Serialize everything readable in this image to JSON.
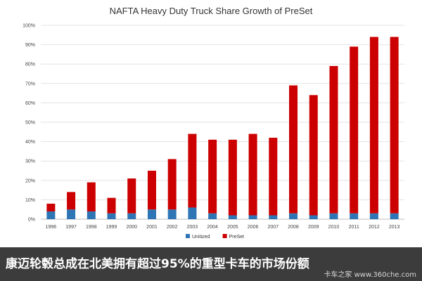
{
  "chart_data": {
    "type": "bar",
    "stacked": true,
    "title": "NAFTA Heavy Duty Truck Share Growth of PreSet",
    "categories": [
      "1996",
      "1997",
      "1998",
      "1999",
      "2000",
      "2001",
      "2002",
      "2003",
      "2004",
      "2005",
      "2006",
      "2007",
      "2008",
      "2009",
      "2010",
      "2011",
      "2012",
      "2013"
    ],
    "series": [
      {
        "name": "Unitized",
        "color": "#2e75b6",
        "values": [
          4,
          5,
          4,
          3,
          3,
          5,
          5,
          6,
          3,
          2,
          2,
          2,
          3,
          2,
          3,
          3,
          3,
          3
        ]
      },
      {
        "name": "PreSet",
        "color": "#cc0000",
        "values": [
          4,
          9,
          15,
          8,
          18,
          20,
          26,
          38,
          38,
          39,
          42,
          40,
          66,
          62,
          76,
          86,
          91,
          91
        ]
      }
    ],
    "totals": [
      8,
      14,
      19,
      11,
      21,
      25,
      31,
      44,
      41,
      41,
      44,
      42,
      69,
      64,
      79,
      89,
      94,
      94
    ],
    "yticks": [
      "0%",
      "10%",
      "20%",
      "30%",
      "40%",
      "50%",
      "60%",
      "70%",
      "80%",
      "90%",
      "100%"
    ],
    "ylim": [
      0,
      100
    ],
    "xlabel": "",
    "ylabel": "",
    "grid": true,
    "legend": "bottom-center"
  },
  "banner": {
    "caption": "康迈轮毂总成在北美拥有超过95%的重型卡车的市场份额",
    "watermark": "卡车之家 www.360che.com"
  }
}
